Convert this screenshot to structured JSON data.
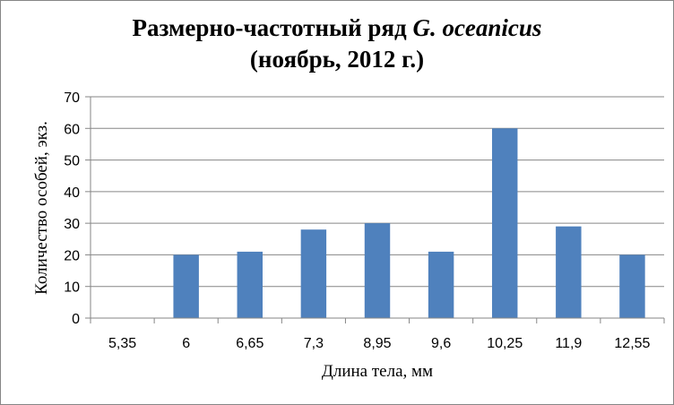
{
  "chart_data": {
    "type": "bar",
    "title_line1": "Размерно-частотный ряд ",
    "title_species": "G. oceanicus",
    "title_line2": "(ноябрь, 2012 г.)",
    "xlabel": "Длина тела, мм",
    "ylabel": "Количество особей, экз.",
    "categories": [
      "5,35",
      "6",
      "6,65",
      "7,3",
      "8,95",
      "9,6",
      "10,25",
      "11,9",
      "12,55"
    ],
    "values": [
      0,
      20,
      21,
      28,
      30,
      21,
      60,
      29,
      20
    ],
    "ylim": [
      0,
      70
    ],
    "yticks": [
      0,
      10,
      20,
      30,
      40,
      50,
      60,
      70
    ],
    "grid": true,
    "legend": "none",
    "bar_color": "#4F81BD"
  }
}
